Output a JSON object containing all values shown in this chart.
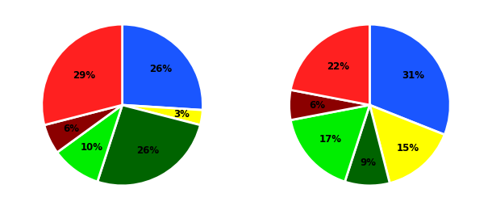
{
  "pie1": {
    "values": [
      26,
      3,
      26,
      10,
      6,
      29
    ],
    "colors": [
      "#1a56ff",
      "#ffff00",
      "#006400",
      "#00ee00",
      "#8b0000",
      "#ff2020"
    ],
    "labels": [
      "26%",
      "3%",
      "26%",
      "10%",
      "6%",
      "29%"
    ],
    "startangle": 90,
    "label_distances": [
      0.65,
      0.75,
      0.65,
      0.65,
      0.7,
      0.6
    ]
  },
  "pie2": {
    "values": [
      31,
      15,
      9,
      17,
      6,
      22
    ],
    "colors": [
      "#1a56ff",
      "#ffff00",
      "#006400",
      "#00ee00",
      "#8b0000",
      "#ff2020"
    ],
    "labels": [
      "31%",
      "15%",
      "9%",
      "17%",
      "6%",
      "22%"
    ],
    "startangle": 90,
    "label_distances": [
      0.65,
      0.72,
      0.72,
      0.65,
      0.65,
      0.62
    ]
  },
  "background_color": "#FFFFFF",
  "text_color": "#000000",
  "text_fontsize": 8.5,
  "wedge_linewidth": 2.0,
  "wedge_edgecolor": "#FFFFFF"
}
